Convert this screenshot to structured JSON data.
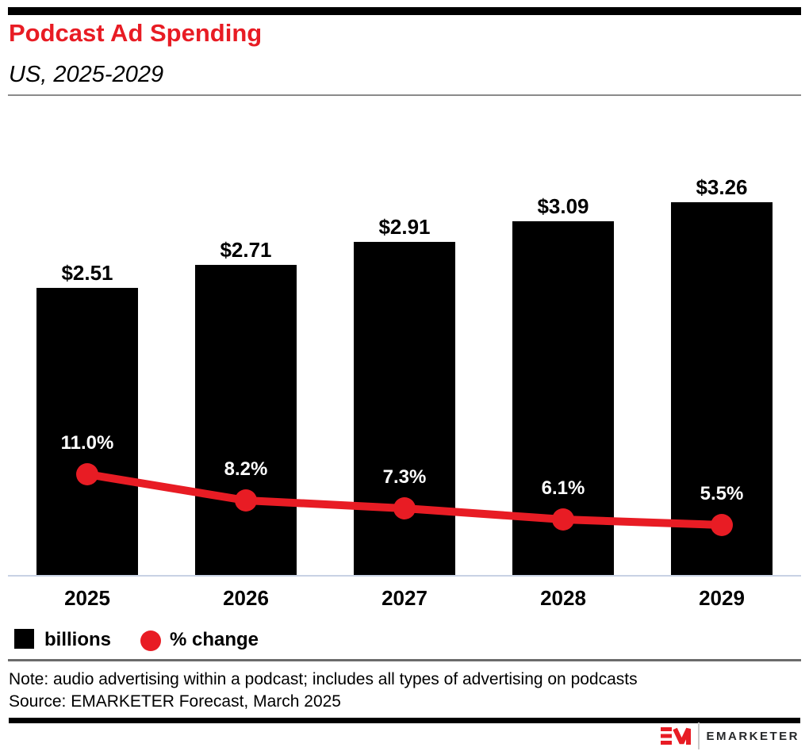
{
  "header": {
    "title": "Podcast Ad Spending",
    "subtitle": "US, 2025-2029"
  },
  "chart_data": {
    "type": "bar",
    "title": "Podcast Ad Spending",
    "subtitle": "US, 2025-2029",
    "categories": [
      "2025",
      "2026",
      "2027",
      "2028",
      "2029"
    ],
    "series": [
      {
        "name": "billions",
        "type": "bar",
        "unit": "US$ billions",
        "values": [
          2.51,
          2.71,
          2.91,
          3.09,
          3.26
        ],
        "labels": [
          "$2.51",
          "$2.71",
          "$2.91",
          "$3.09",
          "$3.26"
        ]
      },
      {
        "name": "% change",
        "type": "line",
        "unit": "percent",
        "values": [
          11.0,
          8.2,
          7.3,
          6.1,
          5.5
        ],
        "labels": [
          "11.0%",
          "8.2%",
          "7.3%",
          "6.1%",
          "5.5%"
        ]
      }
    ],
    "legend": [
      {
        "label": "billions",
        "swatch": "square",
        "color": "#000000"
      },
      {
        "label": "% change",
        "swatch": "circle",
        "color": "#E81C24"
      }
    ],
    "legend_position": "bottom-left",
    "grid": false,
    "y_axis_shown": false
  },
  "footer": {
    "note": "Note: audio advertising within a podcast; includes all types of advertising on podcasts",
    "source": "Source: EMARKETER Forecast, March 2025"
  },
  "branding": {
    "logo_monogram": "EM",
    "logo_text": "EMARKETER"
  },
  "colors": {
    "accent": "#E81C24",
    "bar": "#000000",
    "axis_line": "#C8D2E4",
    "percent_label_text": "#FFFFFF"
  }
}
